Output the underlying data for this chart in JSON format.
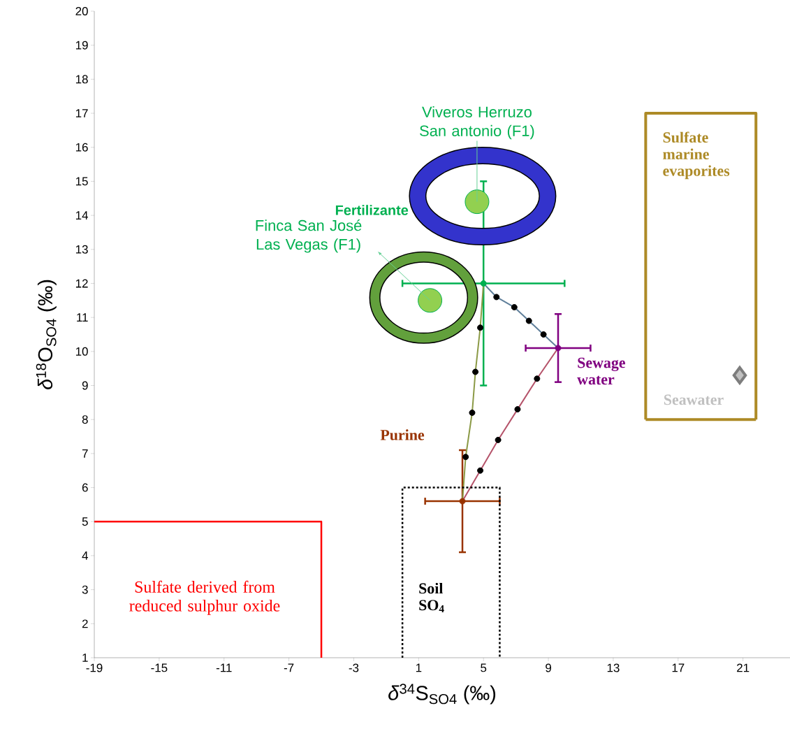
{
  "chart_data": {
    "type": "scatter",
    "xlabel": "*δ*$^{34}$S$_{SO4}$ (‰)",
    "ylabel": "*δ*$^{18}$O$_{SO4}$ (‰)",
    "xlim": [
      -19,
      23.9
    ],
    "ylim": [
      1,
      20
    ],
    "xticks": [
      -19,
      -15,
      -11,
      -7,
      -3,
      1,
      5,
      9,
      13,
      17,
      21
    ],
    "yticks": [
      1,
      2,
      3,
      4,
      5,
      6,
      7,
      8,
      9,
      10,
      11,
      12,
      13,
      14,
      15,
      16,
      17,
      18,
      19,
      20
    ],
    "grid": false,
    "series": [
      {
        "name": "Fertilizante",
        "marker": "circle",
        "color": "#00b050",
        "x": [
          5
        ],
        "values": [
          12
        ],
        "xerrors": [
          5
        ],
        "errors": [
          3
        ]
      },
      {
        "name": "Sewage water",
        "marker": "circle",
        "color": "#800080",
        "x": [
          9.6
        ],
        "values": [
          10.1
        ],
        "xerrors": [
          2
        ],
        "errors": [
          1
        ]
      },
      {
        "name": "Purine",
        "marker": "circle",
        "color": "#993300",
        "x": [
          3.7
        ],
        "values": [
          5.6
        ],
        "xerrors": [
          2.3
        ],
        "errors": [
          1.5
        ]
      },
      {
        "name": "Seawater",
        "marker": "diamond",
        "color": "#c0c0c0",
        "x": [
          20.8
        ],
        "values": [
          9.3
        ]
      },
      {
        "marker": "circle",
        "color": "#92d050",
        "x": [
          1.7,
          4.6
        ],
        "values": [
          11.5,
          14.4
        ]
      },
      {
        "type": "line",
        "marker": "none",
        "color": "#8b9a46",
        "x": [
          3.7,
          3.9,
          4.3,
          4.5,
          4.8,
          5.0
        ],
        "values": [
          5.6,
          6.9,
          8.2,
          9.4,
          10.7,
          12.0
        ]
      },
      {
        "type": "line",
        "marker": "none",
        "color": "#5f7f9a",
        "x": [
          5.0,
          5.8,
          6.9,
          7.8,
          8.7,
          9.6
        ],
        "values": [
          12.0,
          11.6,
          11.3,
          10.9,
          10.5,
          10.1
        ]
      },
      {
        "type": "line",
        "marker": "none",
        "color": "#b5536a",
        "x": [
          3.7,
          4.8,
          5.9,
          7.1,
          8.3,
          9.6
        ],
        "values": [
          5.6,
          6.5,
          7.4,
          8.3,
          9.2,
          10.1
        ]
      },
      {
        "marker": "circle",
        "color": "#000000",
        "x": [
          3.9,
          4.3,
          4.5,
          4.8,
          5.8,
          6.9,
          7.8,
          8.7,
          4.8,
          5.9,
          7.1,
          8.3
        ],
        "values": [
          6.9,
          8.2,
          9.4,
          10.7,
          11.6,
          11.3,
          10.9,
          10.5,
          6.5,
          7.4,
          8.3,
          9.2
        ]
      },
      {
        "name": "Sulfate derived from reduced sulphur oxide",
        "type": "line",
        "marker": "none",
        "color": "#ff0000",
        "x": [
          -19,
          -5,
          -5
        ],
        "values": [
          5,
          5,
          1
        ]
      },
      {
        "name": "Soil SO$_{4}$",
        "type": "line",
        "marker": "none",
        "line_style": "dashed",
        "color": "#000000",
        "x": [
          0,
          0,
          6,
          6
        ],
        "values": [
          1,
          6,
          6,
          1
        ]
      },
      {
        "name": "Sulfate marine evaporites",
        "type": "line",
        "marker": "none",
        "color": "#ad8a26",
        "x": [
          15,
          15,
          21.8,
          21.8
        ],
        "values": [
          8,
          17,
          17,
          8
        ]
      },
      {
        "type": "line",
        "marker": "none",
        "color": "#ad8a26",
        "x": [
          15,
          21.8
        ],
        "values": [
          8,
          8
        ]
      }
    ],
    "annotations": [
      {
        "text": "Viveros Herruzo San antonio (F1)",
        "x": 4.6,
        "y": 14.4
      },
      {
        "text": "Finca San José Las Vegas (F1)",
        "x": 1.7,
        "y": 11.5
      }
    ]
  }
}
